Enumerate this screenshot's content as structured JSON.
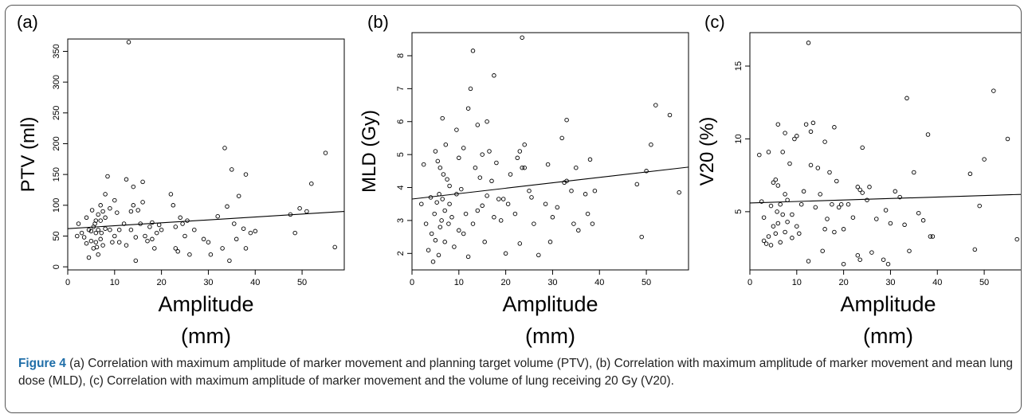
{
  "chart_data": [
    {
      "type": "scatter",
      "panel_label": "(a)",
      "xlabel": "Amplitude",
      "xunit": "(mm)",
      "ylabel": "PTV  (ml)",
      "xlim": [
        0,
        59
      ],
      "ylim": [
        -5,
        370
      ],
      "xticks": [
        0,
        10,
        20,
        30,
        40,
        50
      ],
      "yticks": [
        0,
        50,
        100,
        150,
        200,
        250,
        300,
        350
      ],
      "grid": false,
      "trendline": [
        [
          0,
          62
        ],
        [
          59,
          90
        ]
      ],
      "points": [
        [
          2,
          50
        ],
        [
          2.3,
          70
        ],
        [
          3,
          55
        ],
        [
          3.5,
          48
        ],
        [
          4,
          38
        ],
        [
          4,
          80
        ],
        [
          4.5,
          60
        ],
        [
          4.5,
          15
        ],
        [
          5,
          42
        ],
        [
          5,
          58
        ],
        [
          5.2,
          92
        ],
        [
          5.5,
          65
        ],
        [
          5.5,
          30
        ],
        [
          5.8,
          70
        ],
        [
          6,
          75
        ],
        [
          6,
          55
        ],
        [
          6,
          40
        ],
        [
          6.2,
          32
        ],
        [
          6.5,
          85
        ],
        [
          6.5,
          60
        ],
        [
          6.5,
          20
        ],
        [
          7,
          100
        ],
        [
          7,
          75
        ],
        [
          7,
          45
        ],
        [
          7.2,
          55
        ],
        [
          7.5,
          35
        ],
        [
          7.5,
          90
        ],
        [
          8,
          80
        ],
        [
          8,
          118
        ],
        [
          8,
          62
        ],
        [
          8.5,
          147
        ],
        [
          9,
          95
        ],
        [
          9,
          60
        ],
        [
          9.5,
          40
        ],
        [
          10,
          108
        ],
        [
          10,
          50
        ],
        [
          10.5,
          88
        ],
        [
          11,
          60
        ],
        [
          11,
          40
        ],
        [
          12,
          70
        ],
        [
          12.5,
          142
        ],
        [
          12.5,
          35
        ],
        [
          13,
          365
        ],
        [
          13.5,
          90
        ],
        [
          13.5,
          60
        ],
        [
          14,
          130
        ],
        [
          14,
          100
        ],
        [
          14.5,
          48
        ],
        [
          14.5,
          10
        ],
        [
          15,
          92
        ],
        [
          15.5,
          70
        ],
        [
          16,
          138
        ],
        [
          16,
          105
        ],
        [
          16.5,
          50
        ],
        [
          17,
          42
        ],
        [
          17.5,
          65
        ],
        [
          18,
          45
        ],
        [
          18,
          72
        ],
        [
          18.5,
          30
        ],
        [
          19,
          55
        ],
        [
          19.5,
          68
        ],
        [
          20,
          60
        ],
        [
          22,
          118
        ],
        [
          22.5,
          100
        ],
        [
          23,
          65
        ],
        [
          23,
          30
        ],
        [
          23.5,
          25
        ],
        [
          24,
          80
        ],
        [
          24.5,
          70
        ],
        [
          25,
          50
        ],
        [
          25.5,
          75
        ],
        [
          26,
          20
        ],
        [
          27,
          60
        ],
        [
          29,
          45
        ],
        [
          30,
          40
        ],
        [
          30.5,
          20
        ],
        [
          32,
          82
        ],
        [
          33,
          30
        ],
        [
          33.5,
          193
        ],
        [
          34,
          98
        ],
        [
          34.5,
          10
        ],
        [
          35,
          158
        ],
        [
          35.5,
          70
        ],
        [
          36,
          45
        ],
        [
          36.5,
          115
        ],
        [
          37.5,
          62
        ],
        [
          38,
          150
        ],
        [
          38,
          30
        ],
        [
          39,
          55
        ],
        [
          40,
          58
        ],
        [
          47.5,
          85
        ],
        [
          48.5,
          55
        ],
        [
          49.5,
          95
        ],
        [
          51,
          90
        ],
        [
          52,
          135
        ],
        [
          55,
          185
        ],
        [
          57,
          32
        ]
      ]
    },
    {
      "type": "scatter",
      "panel_label": "(b)",
      "xlabel": "Amplitude",
      "xunit": "(mm)",
      "ylabel": "MLD (Gy)",
      "xlim": [
        0,
        59
      ],
      "ylim": [
        1.5,
        8.7
      ],
      "xticks": [
        0,
        10,
        20,
        30,
        40,
        50
      ],
      "yticks": [
        2,
        3,
        4,
        5,
        6,
        7,
        8
      ],
      "grid": false,
      "trendline": [
        [
          0,
          3.65
        ],
        [
          59,
          4.62
        ]
      ],
      "points": [
        [
          2,
          3.5
        ],
        [
          2.5,
          4.7
        ],
        [
          3,
          2.9
        ],
        [
          3.5,
          2.1
        ],
        [
          4,
          3.7
        ],
        [
          4.2,
          2.6
        ],
        [
          4.5,
          1.75
        ],
        [
          4.8,
          3.2
        ],
        [
          5,
          5.1
        ],
        [
          5,
          2.4
        ],
        [
          5.3,
          3.55
        ],
        [
          5.5,
          4.8
        ],
        [
          5.7,
          1.95
        ],
        [
          5.8,
          3.8
        ],
        [
          6,
          4.6
        ],
        [
          6,
          2.8
        ],
        [
          6.3,
          3.0
        ],
        [
          6.5,
          6.1
        ],
        [
          6.5,
          3.65
        ],
        [
          6.7,
          4.4
        ],
        [
          7,
          2.35
        ],
        [
          7,
          3.3
        ],
        [
          7.2,
          5.3
        ],
        [
          7.5,
          4.25
        ],
        [
          7.8,
          2.9
        ],
        [
          8,
          3.5
        ],
        [
          8,
          4.05
        ],
        [
          8.5,
          3.1
        ],
        [
          9,
          2.2
        ],
        [
          9.5,
          5.75
        ],
        [
          9.5,
          3.8
        ],
        [
          10,
          4.9
        ],
        [
          10,
          2.7
        ],
        [
          10.5,
          3.95
        ],
        [
          11,
          5.2
        ],
        [
          11,
          2.6
        ],
        [
          11.5,
          3.2
        ],
        [
          12,
          6.4
        ],
        [
          12,
          1.9
        ],
        [
          12.5,
          7.0
        ],
        [
          13,
          8.15
        ],
        [
          13,
          2.9
        ],
        [
          13.5,
          4.6
        ],
        [
          14,
          5.9
        ],
        [
          14,
          3.3
        ],
        [
          14.5,
          4.3
        ],
        [
          15,
          5.0
        ],
        [
          15,
          3.45
        ],
        [
          15.5,
          2.35
        ],
        [
          16,
          6.0
        ],
        [
          16,
          3.75
        ],
        [
          16.5,
          5.1
        ],
        [
          17,
          4.2
        ],
        [
          17.5,
          3.1
        ],
        [
          17.5,
          7.4
        ],
        [
          18,
          4.75
        ],
        [
          18.5,
          3.65
        ],
        [
          19,
          3.0
        ],
        [
          19.5,
          3.65
        ],
        [
          20,
          2.0
        ],
        [
          20.5,
          3.5
        ],
        [
          21,
          4.4
        ],
        [
          22,
          3.2
        ],
        [
          22.5,
          4.9
        ],
        [
          23,
          5.1
        ],
        [
          23,
          2.3
        ],
        [
          23.5,
          4.6
        ],
        [
          23.5,
          8.55
        ],
        [
          24,
          5.3
        ],
        [
          24,
          4.6
        ],
        [
          25,
          3.9
        ],
        [
          25.5,
          3.7
        ],
        [
          26,
          2.9
        ],
        [
          27,
          1.95
        ],
        [
          28.5,
          3.5
        ],
        [
          29,
          4.7
        ],
        [
          29.5,
          2.35
        ],
        [
          30,
          3.1
        ],
        [
          31,
          3.4
        ],
        [
          32,
          5.5
        ],
        [
          32.5,
          4.15
        ],
        [
          33,
          4.2
        ],
        [
          33,
          6.05
        ],
        [
          34,
          3.9
        ],
        [
          34.5,
          2.9
        ],
        [
          35,
          4.6
        ],
        [
          35.5,
          2.7
        ],
        [
          37,
          3.8
        ],
        [
          37.5,
          3.2
        ],
        [
          38,
          4.85
        ],
        [
          38.5,
          2.9
        ],
        [
          39,
          3.9
        ],
        [
          48,
          4.1
        ],
        [
          49,
          2.5
        ],
        [
          50,
          4.5
        ],
        [
          51,
          5.3
        ],
        [
          52,
          6.5
        ],
        [
          55,
          6.2
        ],
        [
          57,
          3.85
        ]
      ]
    },
    {
      "type": "scatter",
      "panel_label": "(c)",
      "xlabel": "Amplitude",
      "xunit": "(mm)",
      "ylabel": "V20 (%)",
      "xlim": [
        0,
        59
      ],
      "ylim": [
        1,
        17.3
      ],
      "xticks": [
        0,
        10,
        20,
        30,
        40,
        50
      ],
      "yticks": [
        5,
        10,
        15
      ],
      "grid": false,
      "trendline": [
        [
          0,
          5.6
        ],
        [
          59,
          6.2
        ]
      ],
      "points": [
        [
          2,
          8.9
        ],
        [
          2.5,
          5.7
        ],
        [
          3,
          3.0
        ],
        [
          3,
          4.6
        ],
        [
          3.5,
          2.8
        ],
        [
          4,
          9.1
        ],
        [
          4,
          3.3
        ],
        [
          4.5,
          5.4
        ],
        [
          4.5,
          2.7
        ],
        [
          5,
          7.0
        ],
        [
          5,
          4.0
        ],
        [
          5.5,
          7.2
        ],
        [
          5.5,
          3.5
        ],
        [
          5.8,
          5.0
        ],
        [
          6,
          11.0
        ],
        [
          6,
          6.8
        ],
        [
          6,
          4.2
        ],
        [
          6.5,
          5.5
        ],
        [
          6.5,
          2.9
        ],
        [
          7,
          9.1
        ],
        [
          7,
          4.8
        ],
        [
          7.5,
          10.4
        ],
        [
          7.5,
          6.2
        ],
        [
          7.5,
          3.6
        ],
        [
          8,
          5.8
        ],
        [
          8,
          4.3
        ],
        [
          8.5,
          8.3
        ],
        [
          9,
          4.8
        ],
        [
          9,
          3.2
        ],
        [
          9.5,
          10.0
        ],
        [
          10,
          10.2
        ],
        [
          10,
          4.0
        ],
        [
          10.5,
          3.5
        ],
        [
          11,
          5.5
        ],
        [
          11.5,
          6.4
        ],
        [
          12,
          11.0
        ],
        [
          12.5,
          1.6
        ],
        [
          12.5,
          16.6
        ],
        [
          13,
          10.5
        ],
        [
          13,
          8.2
        ],
        [
          13.5,
          11.1
        ],
        [
          14,
          5.3
        ],
        [
          14.5,
          8.0
        ],
        [
          15,
          6.2
        ],
        [
          15.5,
          2.3
        ],
        [
          16,
          9.8
        ],
        [
          16,
          3.8
        ],
        [
          16.5,
          4.5
        ],
        [
          17,
          7.7
        ],
        [
          17.5,
          5.5
        ],
        [
          18,
          10.8
        ],
        [
          18,
          3.6
        ],
        [
          18.5,
          7.1
        ],
        [
          19,
          5.3
        ],
        [
          19.5,
          5.5
        ],
        [
          20,
          3.8
        ],
        [
          20,
          1.4
        ],
        [
          21,
          5.5
        ],
        [
          22,
          4.6
        ],
        [
          23,
          6.7
        ],
        [
          23,
          2.0
        ],
        [
          23.5,
          6.5
        ],
        [
          23.5,
          1.7
        ],
        [
          24,
          9.4
        ],
        [
          24,
          6.3
        ],
        [
          25,
          5.8
        ],
        [
          25.5,
          6.7
        ],
        [
          26,
          2.2
        ],
        [
          27,
          4.5
        ],
        [
          28.5,
          1.7
        ],
        [
          29,
          5.1
        ],
        [
          29.5,
          1.4
        ],
        [
          30,
          4.2
        ],
        [
          31,
          6.4
        ],
        [
          32,
          6.0
        ],
        [
          33,
          4.1
        ],
        [
          33.5,
          12.8
        ],
        [
          34,
          2.3
        ],
        [
          35,
          7.7
        ],
        [
          36,
          4.9
        ],
        [
          37,
          4.4
        ],
        [
          38,
          10.3
        ],
        [
          38.5,
          3.3
        ],
        [
          39,
          3.3
        ],
        [
          47,
          7.6
        ],
        [
          48,
          2.4
        ],
        [
          49,
          5.4
        ],
        [
          50,
          8.6
        ],
        [
          52,
          13.3
        ],
        [
          55,
          10.0
        ],
        [
          57,
          3.1
        ]
      ]
    }
  ],
  "caption": {
    "label": "Figure 4",
    "text": " (a) Correlation with maximum amplitude of marker movement and planning target volume (PTV), (b) Correlation with maximum amplitude of marker movement and mean lung dose (MLD), (c) Correlation with maximum amplitude of marker movement and the volume of lung receiving 20 Gy (V20)."
  }
}
